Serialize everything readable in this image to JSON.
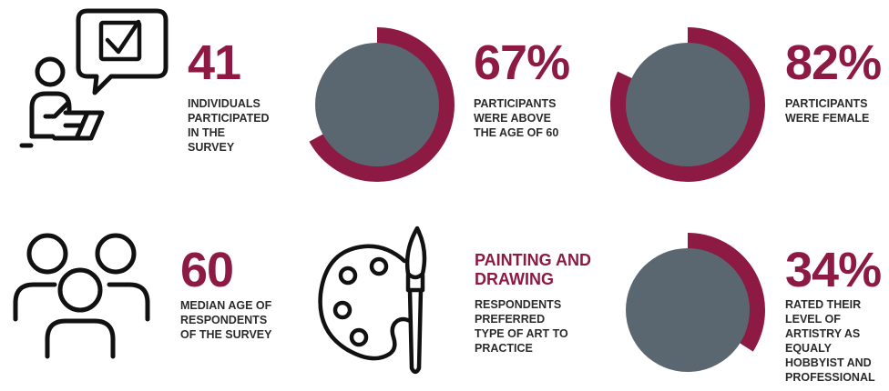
{
  "stats": [
    {
      "id": "participants",
      "value": "41",
      "caption": [
        "INDIVIDUALS",
        "PARTICIPATED",
        "IN THE",
        "SURVEY"
      ],
      "icon": "survey-person-icon"
    },
    {
      "id": "age-above-60",
      "value": "67%",
      "caption": [
        "PARTICIPANTS",
        "WERE ABOVE",
        "THE AGE OF 60"
      ],
      "percent": 67
    },
    {
      "id": "female",
      "value": "82%",
      "caption": [
        "PARTICIPANTS",
        "WERE FEMALE"
      ],
      "percent": 82
    },
    {
      "id": "median-age",
      "value": "60",
      "caption": [
        "MEDIAN AGE OF",
        "RESPONDENTS",
        "OF THE SURVEY"
      ],
      "icon": "group-people-icon"
    },
    {
      "id": "preferred-art",
      "value_lines": [
        "PAINTING AND",
        "DRAWING"
      ],
      "caption": [
        "RESPONDENTS",
        "PREFERRED",
        "TYPE OF ART TO",
        "PRACTICE"
      ],
      "icon": "palette-brush-icon"
    },
    {
      "id": "artistry-level",
      "value": "34%",
      "caption": [
        "RATED THEIR",
        "LEVEL OF",
        "ARTISTRY AS",
        "EQUALY",
        "HOBBYIST AND",
        "PROFESSIONAL"
      ],
      "percent": 34
    }
  ],
  "colors": {
    "accent": "#8c1a43",
    "donut_center": "#5b6770",
    "text": "#2b2b2b",
    "icon": "#111111"
  }
}
